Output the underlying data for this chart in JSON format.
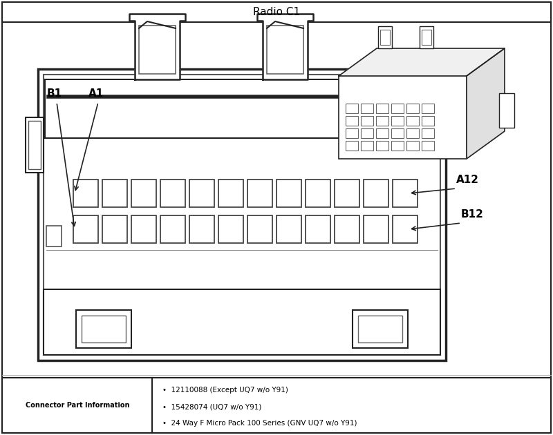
{
  "title": "Radio C1",
  "bullet_items": [
    "12110088 (Except UQ7 w/o Y91)",
    "15428074 (UQ7 w/o Y91)",
    "24 Way F Micro Pack 100 Series (GNV UQ7 w/o Y91)"
  ],
  "bottom_left_label": "Connector Part Information",
  "lc": "#222222",
  "fc_white": "#ffffff",
  "fc_light": "#f5f5f5"
}
